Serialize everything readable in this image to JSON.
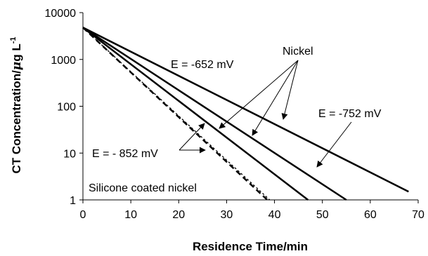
{
  "chart_data": {
    "type": "line",
    "xlabel": "Residence Time/min",
    "ylabel_main": "CT Concentration/",
    "ylabel_mu": "μ",
    "ylabel_unit": "g L",
    "ylabel_sup": "-1",
    "x_ticks": [
      "0",
      "10",
      "20",
      "30",
      "40",
      "50",
      "60",
      "70"
    ],
    "y_ticks": [
      "1",
      "10",
      "100",
      "1000",
      "10000"
    ],
    "xlim": [
      0,
      70
    ],
    "ylim": [
      1,
      10000
    ],
    "y_scale": "log",
    "grid": false,
    "series": [
      {
        "style": "solid",
        "x": [
          0,
          68
        ],
        "y": [
          4800,
          1.5
        ]
      },
      {
        "style": "solid",
        "x": [
          0,
          55
        ],
        "y": [
          4800,
          1
        ]
      },
      {
        "style": "solid",
        "x": [
          0,
          47
        ],
        "y": [
          4800,
          1
        ]
      },
      {
        "style": "dashed",
        "x": [
          0,
          38.5
        ],
        "y": [
          4800,
          1
        ]
      },
      {
        "style": "dotted",
        "x": [
          0,
          39
        ],
        "y": [
          4800,
          1
        ]
      }
    ],
    "annotations": [
      {
        "id": "e652",
        "text": "E = -652 mV"
      },
      {
        "id": "nickel",
        "text": "Nickel"
      },
      {
        "id": "e752",
        "text": "E = -752 mV"
      },
      {
        "id": "e852",
        "text": "E = - 852 mV"
      },
      {
        "id": "silicone",
        "text": "Silicone coated nickel"
      }
    ]
  }
}
